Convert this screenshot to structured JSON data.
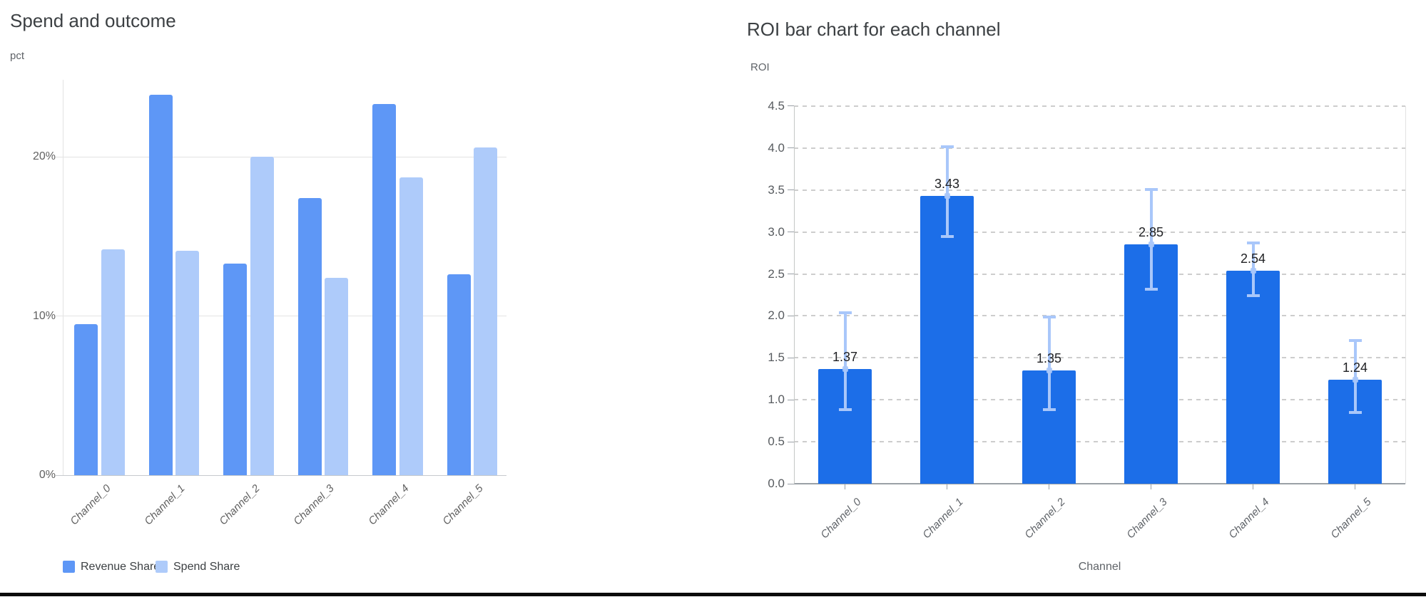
{
  "chart_data": [
    {
      "type": "bar",
      "title": "Spend and outcome",
      "ylabel": "pct",
      "xlabel": "",
      "categories": [
        "Channel_0",
        "Channel_1",
        "Channel_2",
        "Channel_3",
        "Channel_4",
        "Channel_5"
      ],
      "series": [
        {
          "name": "Revenue Share",
          "color": "#5e97f6",
          "values": [
            9.5,
            23.9,
            13.3,
            17.4,
            23.3,
            12.6
          ]
        },
        {
          "name": "Spend Share",
          "color": "#aecbfa",
          "values": [
            14.2,
            14.1,
            20.0,
            12.4,
            18.7,
            20.6
          ]
        }
      ],
      "y_ticks": [
        {
          "value": 0,
          "label": "0%"
        },
        {
          "value": 10,
          "label": "10%"
        },
        {
          "value": 20,
          "label": "20%"
        }
      ],
      "ylim": [
        0,
        25
      ],
      "unit": "percent",
      "grid": "solid",
      "legend_position": "bottom"
    },
    {
      "type": "bar",
      "title": "ROI bar chart for each channel",
      "ylabel": "ROI",
      "xlabel": "Channel",
      "categories": [
        "Channel_0",
        "Channel_1",
        "Channel_2",
        "Channel_3",
        "Channel_4",
        "Channel_5"
      ],
      "series": [
        {
          "name": "ROI",
          "color": "#1c6ee8",
          "values": [
            1.37,
            3.43,
            1.35,
            2.85,
            2.54,
            1.24
          ]
        }
      ],
      "value_labels": [
        "1.37",
        "3.43",
        "1.35",
        "2.85",
        "2.54",
        "1.24"
      ],
      "error_low": [
        0.88,
        2.95,
        0.88,
        2.32,
        2.24,
        0.85
      ],
      "error_high": [
        2.04,
        4.02,
        1.99,
        3.51,
        2.87,
        1.71
      ],
      "error_color": "#a9c7fa",
      "y_ticks": [
        {
          "value": 0.0,
          "label": "0.0"
        },
        {
          "value": 0.5,
          "label": "0.5"
        },
        {
          "value": 1.0,
          "label": "1.0"
        },
        {
          "value": 1.5,
          "label": "1.5"
        },
        {
          "value": 2.0,
          "label": "2.0"
        },
        {
          "value": 2.5,
          "label": "2.5"
        },
        {
          "value": 3.0,
          "label": "3.0"
        },
        {
          "value": 3.5,
          "label": "3.5"
        },
        {
          "value": 4.0,
          "label": "4.0"
        },
        {
          "value": 4.5,
          "label": "4.5"
        }
      ],
      "ylim": [
        0,
        4.5
      ],
      "grid": "dashed",
      "legend_position": "none"
    }
  ]
}
